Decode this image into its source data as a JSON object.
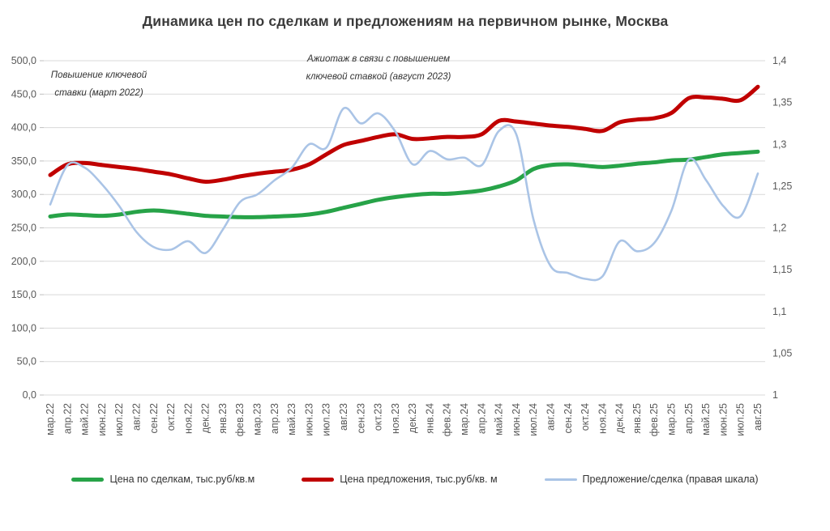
{
  "title": "Динамика цен по сделкам и предложениям на первичном рынке, Москва",
  "annotations": {
    "key_rate_2022": "Повышение ключевой ставки (март 2022)",
    "rush_2023": "Ажиотаж в связи с повышением ключевой ставкой (август 2023)"
  },
  "chart_data": {
    "type": "line",
    "title": "Динамика цен по сделкам и предложениям на первичном рынке, Москва",
    "grid": true,
    "legend_position": "bottom",
    "style": {
      "grid_color": "#d9d9d9",
      "tick_mark_color": "#bfbfbf",
      "tick_text_color": "#595959"
    },
    "categories": [
      "мар.22",
      "апр.22",
      "май.22",
      "июн.22",
      "июл.22",
      "авг.22",
      "сен.22",
      "окт.22",
      "ноя.22",
      "дек.22",
      "янв.23",
      "фев.23",
      "мар.23",
      "апр.23",
      "май.23",
      "июн.23",
      "июл.23",
      "авг.23",
      "сен.23",
      "окт.23",
      "ноя.23",
      "дек.23",
      "янв.24",
      "фев.24",
      "мар.24",
      "апр.24",
      "май.24",
      "июн.24",
      "июл.24",
      "авг.24",
      "сен.24",
      "окт.24",
      "ноя.24",
      "дек.24",
      "янв.25",
      "фев.25",
      "мар.25",
      "апр.25",
      "май.25",
      "июн.25",
      "июл.25",
      "авг.25"
    ],
    "left_axis": {
      "min": 0,
      "max": 500,
      "step": 50,
      "labels": [
        "500,0",
        "450,0",
        "400,0",
        "350,0",
        "300,0",
        "250,0",
        "200,0",
        "150,0",
        "100,0",
        "50,0",
        "0,0"
      ]
    },
    "right_axis": {
      "min": 1,
      "max": 1.4,
      "step": 0.05,
      "labels": [
        "1,4",
        "1,35",
        "1,3",
        "1,25",
        "1,2",
        "1,15",
        "1,1",
        "1,05",
        "1"
      ]
    },
    "series": [
      {
        "name": "Цена по сделкам, тыс.руб/кв.м",
        "color": "#27a348",
        "axis": "left",
        "width": 5,
        "values": [
          267,
          270,
          269,
          268,
          270,
          274,
          276,
          274,
          271,
          268,
          267,
          266,
          266,
          267,
          268,
          270,
          274,
          280,
          286,
          292,
          296,
          299,
          301,
          301,
          303,
          306,
          312,
          321,
          338,
          344,
          345,
          343,
          341,
          343,
          346,
          348,
          351,
          352,
          356,
          360,
          362,
          364
        ]
      },
      {
        "name": "Цена предложения, тыс.руб/кв. м",
        "color": "#c00000",
        "axis": "left",
        "width": 5,
        "values": [
          329,
          345,
          347,
          344,
          341,
          338,
          334,
          330,
          324,
          319,
          322,
          327,
          331,
          334,
          337,
          345,
          360,
          374,
          380,
          386,
          390,
          383,
          384,
          386,
          386,
          390,
          410,
          409,
          406,
          403,
          401,
          398,
          395,
          408,
          412,
          414,
          422,
          444,
          445,
          443,
          441,
          461
        ]
      },
      {
        "name": "Предложение/сделка (правая шкала)",
        "color": "#aac4e6",
        "axis": "right",
        "width": 2.6,
        "values": [
          1.228,
          1.275,
          1.272,
          1.252,
          1.226,
          1.195,
          1.177,
          1.174,
          1.184,
          1.17,
          1.198,
          1.231,
          1.24,
          1.257,
          1.272,
          1.3,
          1.296,
          1.343,
          1.325,
          1.337,
          1.315,
          1.276,
          1.292,
          1.282,
          1.284,
          1.275,
          1.316,
          1.312,
          1.21,
          1.154,
          1.146,
          1.139,
          1.142,
          1.184,
          1.172,
          1.182,
          1.221,
          1.282,
          1.257,
          1.226,
          1.214,
          1.265
        ]
      }
    ]
  }
}
